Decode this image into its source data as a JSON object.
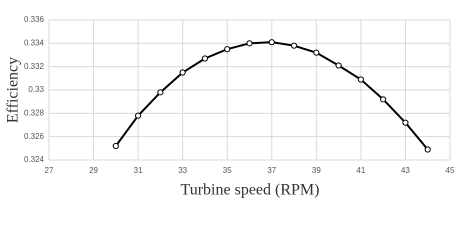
{
  "chart_data": {
    "type": "line",
    "x_label": "Turbine speed (RPM)",
    "y_label": "Efficiency",
    "x": [
      30,
      31,
      32,
      33,
      34,
      35,
      36,
      37,
      38,
      39,
      40,
      41,
      42,
      43,
      44
    ],
    "series": [
      {
        "color": "#000000",
        "values": [
          0.3252,
          0.3278,
          0.3298,
          0.3315,
          0.3327,
          0.3335,
          0.334,
          0.3341,
          0.3338,
          0.3332,
          0.3321,
          0.3309,
          0.3292,
          0.3272,
          0.3249
        ]
      }
    ],
    "xlim": [
      27,
      45
    ],
    "xticks": [
      27,
      29,
      31,
      33,
      35,
      37,
      39,
      41,
      43,
      45
    ],
    "ylim": [
      0.324,
      0.336
    ],
    "yticks": [
      0.324,
      0.326,
      0.328,
      0.33,
      0.332,
      0.334,
      0.336
    ],
    "grid": true,
    "markers": true
  }
}
